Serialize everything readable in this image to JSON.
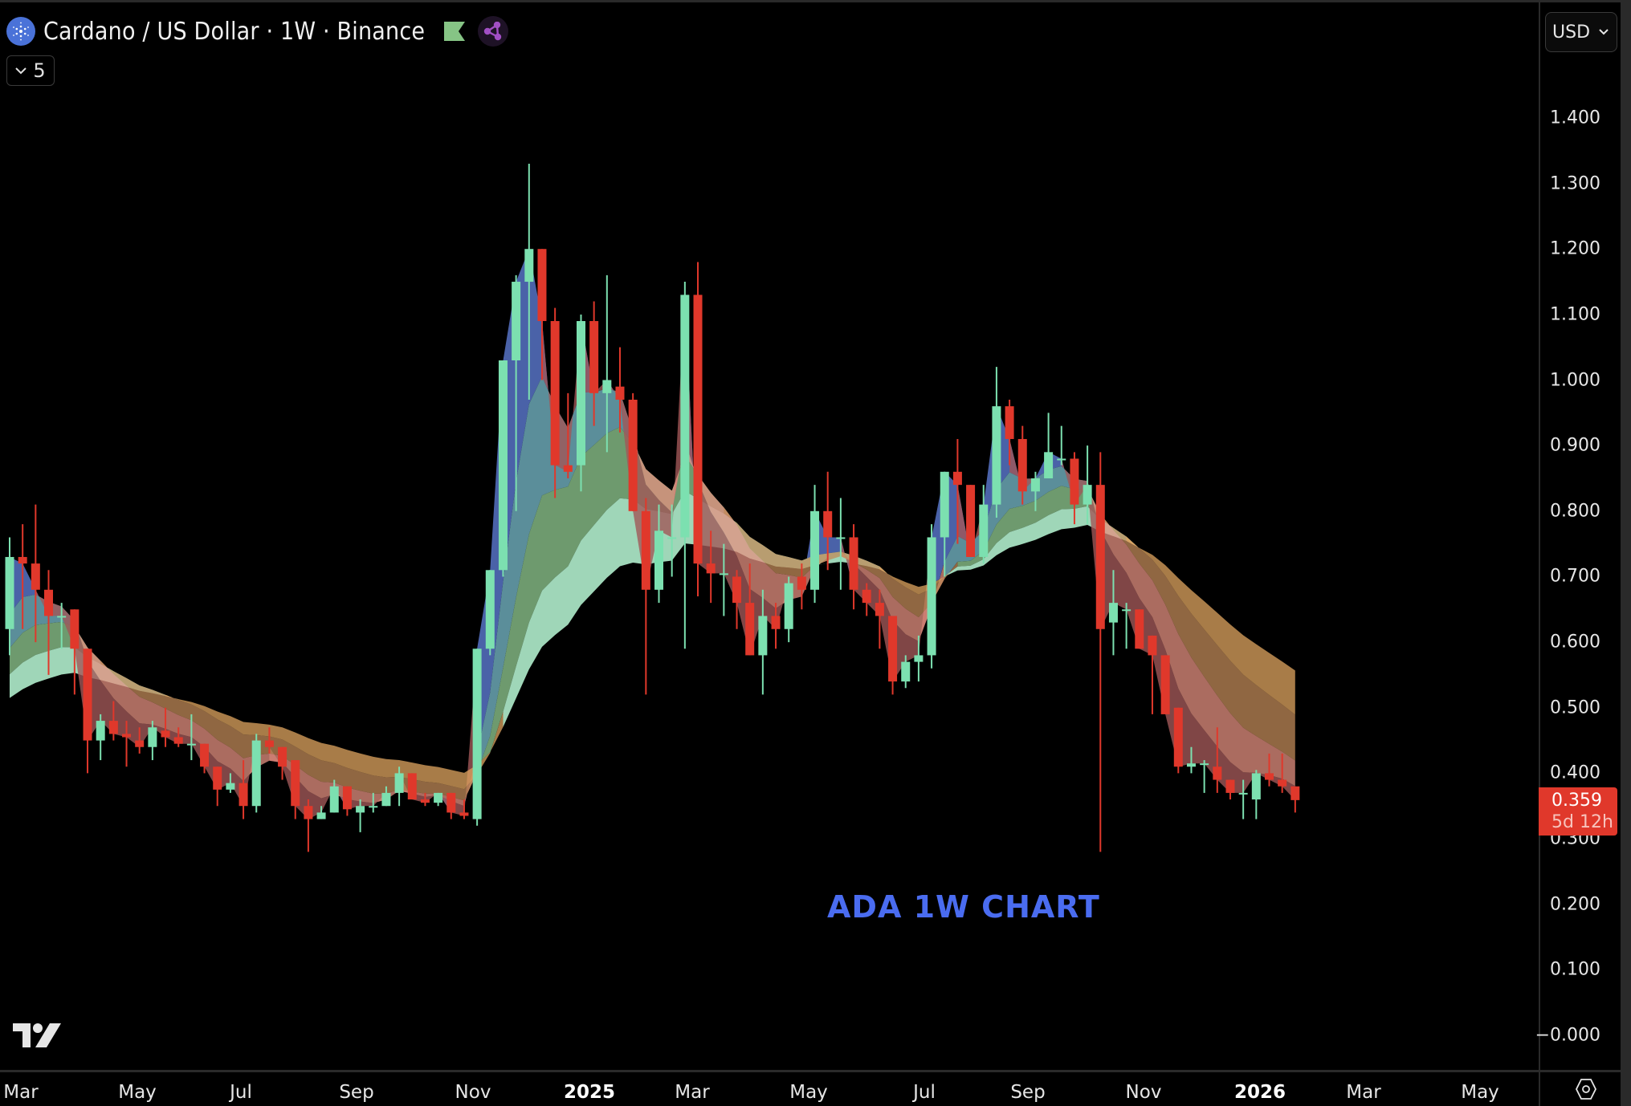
{
  "header": {
    "symbol_title": "Cardano / US Dollar · 1W · Binance",
    "indicator_count": "5",
    "icons": {
      "coin": "cardano-coin-icon",
      "flag": "flag-icon",
      "share": "share-network-icon",
      "chevron": "chevron-down-icon"
    }
  },
  "price_axis": {
    "currency_selector": "USD",
    "labels": [
      "1.400",
      "1.300",
      "1.200",
      "1.100",
      "1.000",
      "0.900",
      "0.800",
      "0.700",
      "0.600",
      "0.500",
      "0.400",
      "0.300",
      "0.200",
      "0.100",
      "−0.000"
    ],
    "last_price": "0.359",
    "countdown": "5d 12h",
    "last_price_color": "#e0382b"
  },
  "time_axis": {
    "labels": [
      {
        "text": "Mar",
        "bold": false
      },
      {
        "text": "May",
        "bold": false
      },
      {
        "text": "Jul",
        "bold": false
      },
      {
        "text": "Sep",
        "bold": false
      },
      {
        "text": "Nov",
        "bold": false
      },
      {
        "text": "2025",
        "bold": true
      },
      {
        "text": "Mar",
        "bold": false
      },
      {
        "text": "May",
        "bold": false
      },
      {
        "text": "Jul",
        "bold": false
      },
      {
        "text": "Sep",
        "bold": false
      },
      {
        "text": "Nov",
        "bold": false
      },
      {
        "text": "2026",
        "bold": true
      },
      {
        "text": "Mar",
        "bold": false
      },
      {
        "text": "May",
        "bold": false
      }
    ],
    "settings_icon": "gear-hexagon-icon"
  },
  "annotation": {
    "text": "ADA 1W CHART",
    "color": "#4a6cf0"
  },
  "colors": {
    "up": "#7ce0b0",
    "down": "#e0382b",
    "background": "#000000"
  },
  "chart_data": {
    "type": "candlestick",
    "title": "Cardano / US Dollar · 1W · Binance",
    "xlabel": "",
    "ylabel": "USD",
    "ylim": [
      0,
      1.45
    ],
    "grid": false,
    "overlay": "EMA ribbon (multiple moving averages, filled bands)",
    "annotation": "ADA 1W CHART",
    "x_tick_labels": [
      "Mar",
      "May",
      "Jul",
      "Sep",
      "Nov",
      "2025",
      "Mar",
      "May",
      "Jul",
      "Sep",
      "Nov",
      "2026",
      "Mar",
      "May"
    ],
    "y_tick_labels": [
      1.4,
      1.3,
      1.2,
      1.1,
      1.0,
      0.9,
      0.8,
      0.7,
      0.6,
      0.5,
      0.4,
      0.3,
      0.2,
      0.1,
      0.0
    ],
    "last_price": 0.359,
    "candles": [
      {
        "o": 0.62,
        "h": 0.76,
        "l": 0.58,
        "c": 0.73
      },
      {
        "o": 0.73,
        "h": 0.78,
        "l": 0.62,
        "c": 0.72
      },
      {
        "o": 0.72,
        "h": 0.81,
        "l": 0.6,
        "c": 0.68
      },
      {
        "o": 0.68,
        "h": 0.71,
        "l": 0.55,
        "c": 0.64
      },
      {
        "o": 0.64,
        "h": 0.66,
        "l": 0.59,
        "c": 0.64
      },
      {
        "o": 0.65,
        "h": 0.65,
        "l": 0.52,
        "c": 0.59
      },
      {
        "o": 0.59,
        "h": 0.57,
        "l": 0.4,
        "c": 0.45
      },
      {
        "o": 0.45,
        "h": 0.49,
        "l": 0.42,
        "c": 0.48
      },
      {
        "o": 0.48,
        "h": 0.51,
        "l": 0.45,
        "c": 0.46
      },
      {
        "o": 0.46,
        "h": 0.48,
        "l": 0.41,
        "c": 0.455
      },
      {
        "o": 0.45,
        "h": 0.47,
        "l": 0.43,
        "c": 0.44
      },
      {
        "o": 0.44,
        "h": 0.48,
        "l": 0.42,
        "c": 0.47
      },
      {
        "o": 0.465,
        "h": 0.5,
        "l": 0.44,
        "c": 0.455
      },
      {
        "o": 0.455,
        "h": 0.47,
        "l": 0.44,
        "c": 0.445
      },
      {
        "o": 0.445,
        "h": 0.49,
        "l": 0.42,
        "c": 0.445
      },
      {
        "o": 0.445,
        "h": 0.44,
        "l": 0.4,
        "c": 0.41
      },
      {
        "o": 0.41,
        "h": 0.4,
        "l": 0.35,
        "c": 0.375
      },
      {
        "o": 0.375,
        "h": 0.4,
        "l": 0.37,
        "c": 0.385
      },
      {
        "o": 0.385,
        "h": 0.42,
        "l": 0.33,
        "c": 0.35
      },
      {
        "o": 0.35,
        "h": 0.46,
        "l": 0.34,
        "c": 0.45
      },
      {
        "o": 0.45,
        "h": 0.47,
        "l": 0.43,
        "c": 0.44
      },
      {
        "o": 0.44,
        "h": 0.44,
        "l": 0.39,
        "c": 0.41
      },
      {
        "o": 0.42,
        "h": 0.42,
        "l": 0.33,
        "c": 0.35
      },
      {
        "o": 0.35,
        "h": 0.36,
        "l": 0.28,
        "c": 0.33
      },
      {
        "o": 0.33,
        "h": 0.35,
        "l": 0.33,
        "c": 0.34
      },
      {
        "o": 0.34,
        "h": 0.39,
        "l": 0.34,
        "c": 0.38
      },
      {
        "o": 0.38,
        "h": 0.38,
        "l": 0.335,
        "c": 0.345
      },
      {
        "o": 0.34,
        "h": 0.36,
        "l": 0.31,
        "c": 0.35
      },
      {
        "o": 0.35,
        "h": 0.37,
        "l": 0.34,
        "c": 0.35
      },
      {
        "o": 0.35,
        "h": 0.38,
        "l": 0.35,
        "c": 0.37
      },
      {
        "o": 0.37,
        "h": 0.41,
        "l": 0.35,
        "c": 0.4
      },
      {
        "o": 0.4,
        "h": 0.4,
        "l": 0.36,
        "c": 0.36
      },
      {
        "o": 0.36,
        "h": 0.37,
        "l": 0.35,
        "c": 0.355
      },
      {
        "o": 0.355,
        "h": 0.37,
        "l": 0.35,
        "c": 0.37
      },
      {
        "o": 0.37,
        "h": 0.37,
        "l": 0.33,
        "c": 0.34
      },
      {
        "o": 0.34,
        "h": 0.36,
        "l": 0.33,
        "c": 0.335
      },
      {
        "o": 0.33,
        "h": 0.59,
        "l": 0.32,
        "c": 0.59
      },
      {
        "o": 0.59,
        "h": 0.71,
        "l": 0.58,
        "c": 0.71
      },
      {
        "o": 0.71,
        "h": 1.02,
        "l": 0.7,
        "c": 1.03
      },
      {
        "o": 1.03,
        "h": 1.16,
        "l": 0.8,
        "c": 1.15
      },
      {
        "o": 1.15,
        "h": 1.33,
        "l": 0.97,
        "c": 1.2
      },
      {
        "o": 1.2,
        "h": 1.19,
        "l": 1.0,
        "c": 1.09
      },
      {
        "o": 1.09,
        "h": 1.11,
        "l": 0.82,
        "c": 0.87
      },
      {
        "o": 0.87,
        "h": 0.98,
        "l": 0.85,
        "c": 0.86
      },
      {
        "o": 0.87,
        "h": 1.1,
        "l": 0.83,
        "c": 1.09
      },
      {
        "o": 1.09,
        "h": 1.12,
        "l": 0.93,
        "c": 0.98
      },
      {
        "o": 0.98,
        "h": 1.16,
        "l": 0.89,
        "c": 1.0
      },
      {
        "o": 0.99,
        "h": 1.05,
        "l": 0.92,
        "c": 0.97
      },
      {
        "o": 0.97,
        "h": 0.98,
        "l": 0.8,
        "c": 0.8
      },
      {
        "o": 0.8,
        "h": 0.82,
        "l": 0.52,
        "c": 0.68
      },
      {
        "o": 0.68,
        "h": 0.81,
        "l": 0.66,
        "c": 0.77
      },
      {
        "o": 0.76,
        "h": 0.81,
        "l": 0.7,
        "c": 0.76
      },
      {
        "o": 0.76,
        "h": 1.15,
        "l": 0.59,
        "c": 1.13
      },
      {
        "o": 1.13,
        "h": 1.18,
        "l": 0.67,
        "c": 0.72
      },
      {
        "o": 0.72,
        "h": 0.77,
        "l": 0.66,
        "c": 0.705
      },
      {
        "o": 0.705,
        "h": 0.75,
        "l": 0.64,
        "c": 0.705
      },
      {
        "o": 0.7,
        "h": 0.71,
        "l": 0.62,
        "c": 0.66
      },
      {
        "o": 0.66,
        "h": 0.72,
        "l": 0.58,
        "c": 0.58
      },
      {
        "o": 0.58,
        "h": 0.68,
        "l": 0.52,
        "c": 0.64
      },
      {
        "o": 0.64,
        "h": 0.66,
        "l": 0.59,
        "c": 0.62
      },
      {
        "o": 0.62,
        "h": 0.7,
        "l": 0.6,
        "c": 0.69
      },
      {
        "o": 0.7,
        "h": 0.72,
        "l": 0.65,
        "c": 0.68
      },
      {
        "o": 0.68,
        "h": 0.84,
        "l": 0.66,
        "c": 0.8
      },
      {
        "o": 0.8,
        "h": 0.86,
        "l": 0.71,
        "c": 0.76
      },
      {
        "o": 0.76,
        "h": 0.82,
        "l": 0.68,
        "c": 0.76
      },
      {
        "o": 0.76,
        "h": 0.78,
        "l": 0.65,
        "c": 0.68
      },
      {
        "o": 0.68,
        "h": 0.69,
        "l": 0.64,
        "c": 0.66
      },
      {
        "o": 0.66,
        "h": 0.68,
        "l": 0.59,
        "c": 0.64
      },
      {
        "o": 0.64,
        "h": 0.61,
        "l": 0.52,
        "c": 0.54
      },
      {
        "o": 0.54,
        "h": 0.58,
        "l": 0.53,
        "c": 0.57
      },
      {
        "o": 0.57,
        "h": 0.61,
        "l": 0.54,
        "c": 0.58
      },
      {
        "o": 0.58,
        "h": 0.78,
        "l": 0.56,
        "c": 0.76
      },
      {
        "o": 0.76,
        "h": 0.86,
        "l": 0.7,
        "c": 0.86
      },
      {
        "o": 0.86,
        "h": 0.91,
        "l": 0.75,
        "c": 0.84
      },
      {
        "o": 0.84,
        "h": 0.83,
        "l": 0.73,
        "c": 0.73
      },
      {
        "o": 0.73,
        "h": 0.84,
        "l": 0.72,
        "c": 0.81
      },
      {
        "o": 0.81,
        "h": 1.02,
        "l": 0.79,
        "c": 0.96
      },
      {
        "o": 0.96,
        "h": 0.97,
        "l": 0.87,
        "c": 0.91
      },
      {
        "o": 0.91,
        "h": 0.93,
        "l": 0.81,
        "c": 0.83
      },
      {
        "o": 0.83,
        "h": 0.86,
        "l": 0.8,
        "c": 0.85
      },
      {
        "o": 0.85,
        "h": 0.95,
        "l": 0.86,
        "c": 0.89
      },
      {
        "o": 0.88,
        "h": 0.93,
        "l": 0.87,
        "c": 0.88
      },
      {
        "o": 0.88,
        "h": 0.89,
        "l": 0.78,
        "c": 0.81
      },
      {
        "o": 0.81,
        "h": 0.9,
        "l": 0.78,
        "c": 0.84
      },
      {
        "o": 0.84,
        "h": 0.89,
        "l": 0.28,
        "c": 0.62
      },
      {
        "o": 0.63,
        "h": 0.71,
        "l": 0.58,
        "c": 0.66
      },
      {
        "o": 0.65,
        "h": 0.66,
        "l": 0.59,
        "c": 0.65
      },
      {
        "o": 0.65,
        "h": 0.64,
        "l": 0.59,
        "c": 0.59
      },
      {
        "o": 0.61,
        "h": 0.61,
        "l": 0.49,
        "c": 0.58
      },
      {
        "o": 0.58,
        "h": 0.56,
        "l": 0.49,
        "c": 0.49
      },
      {
        "o": 0.5,
        "h": 0.5,
        "l": 0.4,
        "c": 0.41
      },
      {
        "o": 0.41,
        "h": 0.44,
        "l": 0.4,
        "c": 0.415
      },
      {
        "o": 0.415,
        "h": 0.42,
        "l": 0.37,
        "c": 0.415
      },
      {
        "o": 0.41,
        "h": 0.47,
        "l": 0.37,
        "c": 0.39
      },
      {
        "o": 0.39,
        "h": 0.39,
        "l": 0.36,
        "c": 0.37
      },
      {
        "o": 0.37,
        "h": 0.39,
        "l": 0.33,
        "c": 0.37
      },
      {
        "o": 0.36,
        "h": 0.405,
        "l": 0.33,
        "c": 0.4
      },
      {
        "o": 0.4,
        "h": 0.43,
        "l": 0.38,
        "c": 0.39
      },
      {
        "o": 0.39,
        "h": 0.43,
        "l": 0.37,
        "c": 0.38
      },
      {
        "o": 0.38,
        "h": 0.375,
        "l": 0.34,
        "c": 0.359
      }
    ]
  }
}
